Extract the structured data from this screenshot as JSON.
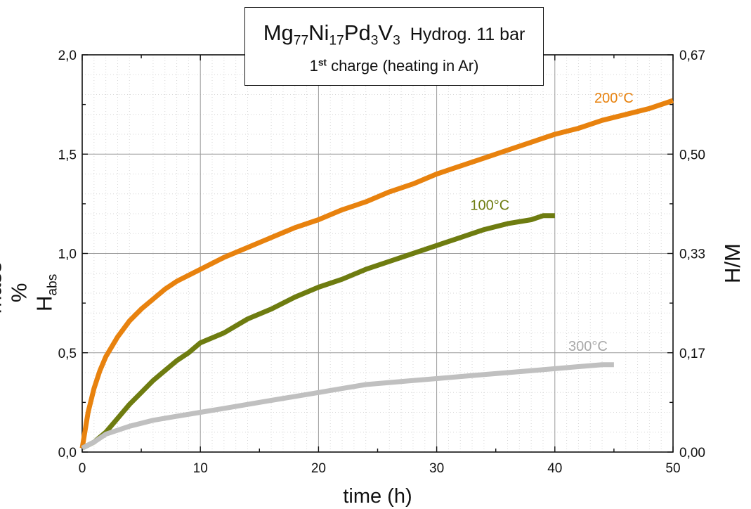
{
  "title": {
    "formula": {
      "parts": [
        {
          "el": "Mg",
          "n": "77"
        },
        {
          "el": "Ni",
          "n": "17"
        },
        {
          "el": "Pd",
          "n": "3"
        },
        {
          "el": "V",
          "n": "3"
        }
      ]
    },
    "condition": "Hydrog. 11 bar",
    "subtitle_number": "1",
    "subtitle_sup": "st",
    "subtitle_rest": " charge (heating in Ar)"
  },
  "axes": {
    "xlabel": "time (h)",
    "ylabel_main": "mass % H",
    "ylabel_sub": "abs",
    "y2label": "H/M",
    "x_ticks": [
      "0",
      "10",
      "20",
      "30",
      "40",
      "50"
    ],
    "y_ticks": [
      "0,0",
      "0,5",
      "1,0",
      "1,5",
      "2,0"
    ],
    "y2_ticks": [
      "0,00",
      "0,17",
      "0,33",
      "0,50",
      "0,67"
    ],
    "xlim": [
      0,
      50
    ],
    "ylim": [
      0,
      2.0
    ],
    "grid": true
  },
  "chart_data": {
    "type": "line",
    "title": "Mg77Ni17Pd3V3 Hydrog. 11 bar — 1st charge (heating in Ar)",
    "xlabel": "time (h)",
    "ylabel": "mass % Habs",
    "y2label": "H/M",
    "xlim": [
      0,
      50
    ],
    "ylim": [
      0,
      2.0
    ],
    "y2lim": [
      0,
      0.67
    ],
    "grid": true,
    "series": [
      {
        "name": "200°C",
        "color": "#E8820E",
        "x": [
          0,
          0.5,
          1,
          1.5,
          2,
          3,
          4,
          5,
          6,
          7,
          8,
          9,
          10,
          12,
          14,
          16,
          18,
          20,
          22,
          24,
          26,
          28,
          30,
          32,
          34,
          36,
          38,
          40,
          42,
          44,
          46,
          48,
          50
        ],
        "y": [
          0.02,
          0.2,
          0.32,
          0.41,
          0.48,
          0.58,
          0.66,
          0.72,
          0.77,
          0.82,
          0.86,
          0.89,
          0.92,
          0.98,
          1.03,
          1.08,
          1.13,
          1.17,
          1.22,
          1.26,
          1.31,
          1.35,
          1.4,
          1.44,
          1.48,
          1.52,
          1.56,
          1.6,
          1.63,
          1.67,
          1.7,
          1.73,
          1.77
        ]
      },
      {
        "name": "100°C",
        "color": "#6E7C10",
        "x": [
          0,
          1,
          2,
          3,
          4,
          5,
          6,
          7,
          8,
          9,
          10,
          12,
          14,
          16,
          18,
          20,
          22,
          24,
          26,
          28,
          30,
          32,
          34,
          36,
          38,
          39,
          40
        ],
        "y": [
          0.02,
          0.05,
          0.1,
          0.17,
          0.24,
          0.3,
          0.36,
          0.41,
          0.46,
          0.5,
          0.55,
          0.6,
          0.67,
          0.72,
          0.78,
          0.83,
          0.87,
          0.92,
          0.96,
          1.0,
          1.04,
          1.08,
          1.12,
          1.15,
          1.17,
          1.19,
          1.19
        ]
      },
      {
        "name": "300°C",
        "color": "#C0C0C0",
        "x": [
          0,
          1,
          2,
          4,
          6,
          8,
          10,
          12,
          14,
          16,
          18,
          20,
          22,
          24,
          26,
          28,
          30,
          32,
          34,
          36,
          38,
          40,
          42,
          44,
          45
        ],
        "y": [
          0.02,
          0.05,
          0.09,
          0.13,
          0.16,
          0.18,
          0.2,
          0.22,
          0.24,
          0.26,
          0.28,
          0.3,
          0.32,
          0.34,
          0.35,
          0.36,
          0.37,
          0.38,
          0.39,
          0.4,
          0.41,
          0.42,
          0.43,
          0.44,
          0.44
        ]
      }
    ],
    "annotations": [
      {
        "text": "200°C",
        "x": 45,
        "y": 1.76,
        "color": "#E8820E"
      },
      {
        "text": "100°C",
        "x": 34.5,
        "y": 1.22,
        "color": "#6E7C10"
      },
      {
        "text": "300°C",
        "x": 42.8,
        "y": 0.51,
        "color": "#A8A8A8"
      }
    ]
  }
}
